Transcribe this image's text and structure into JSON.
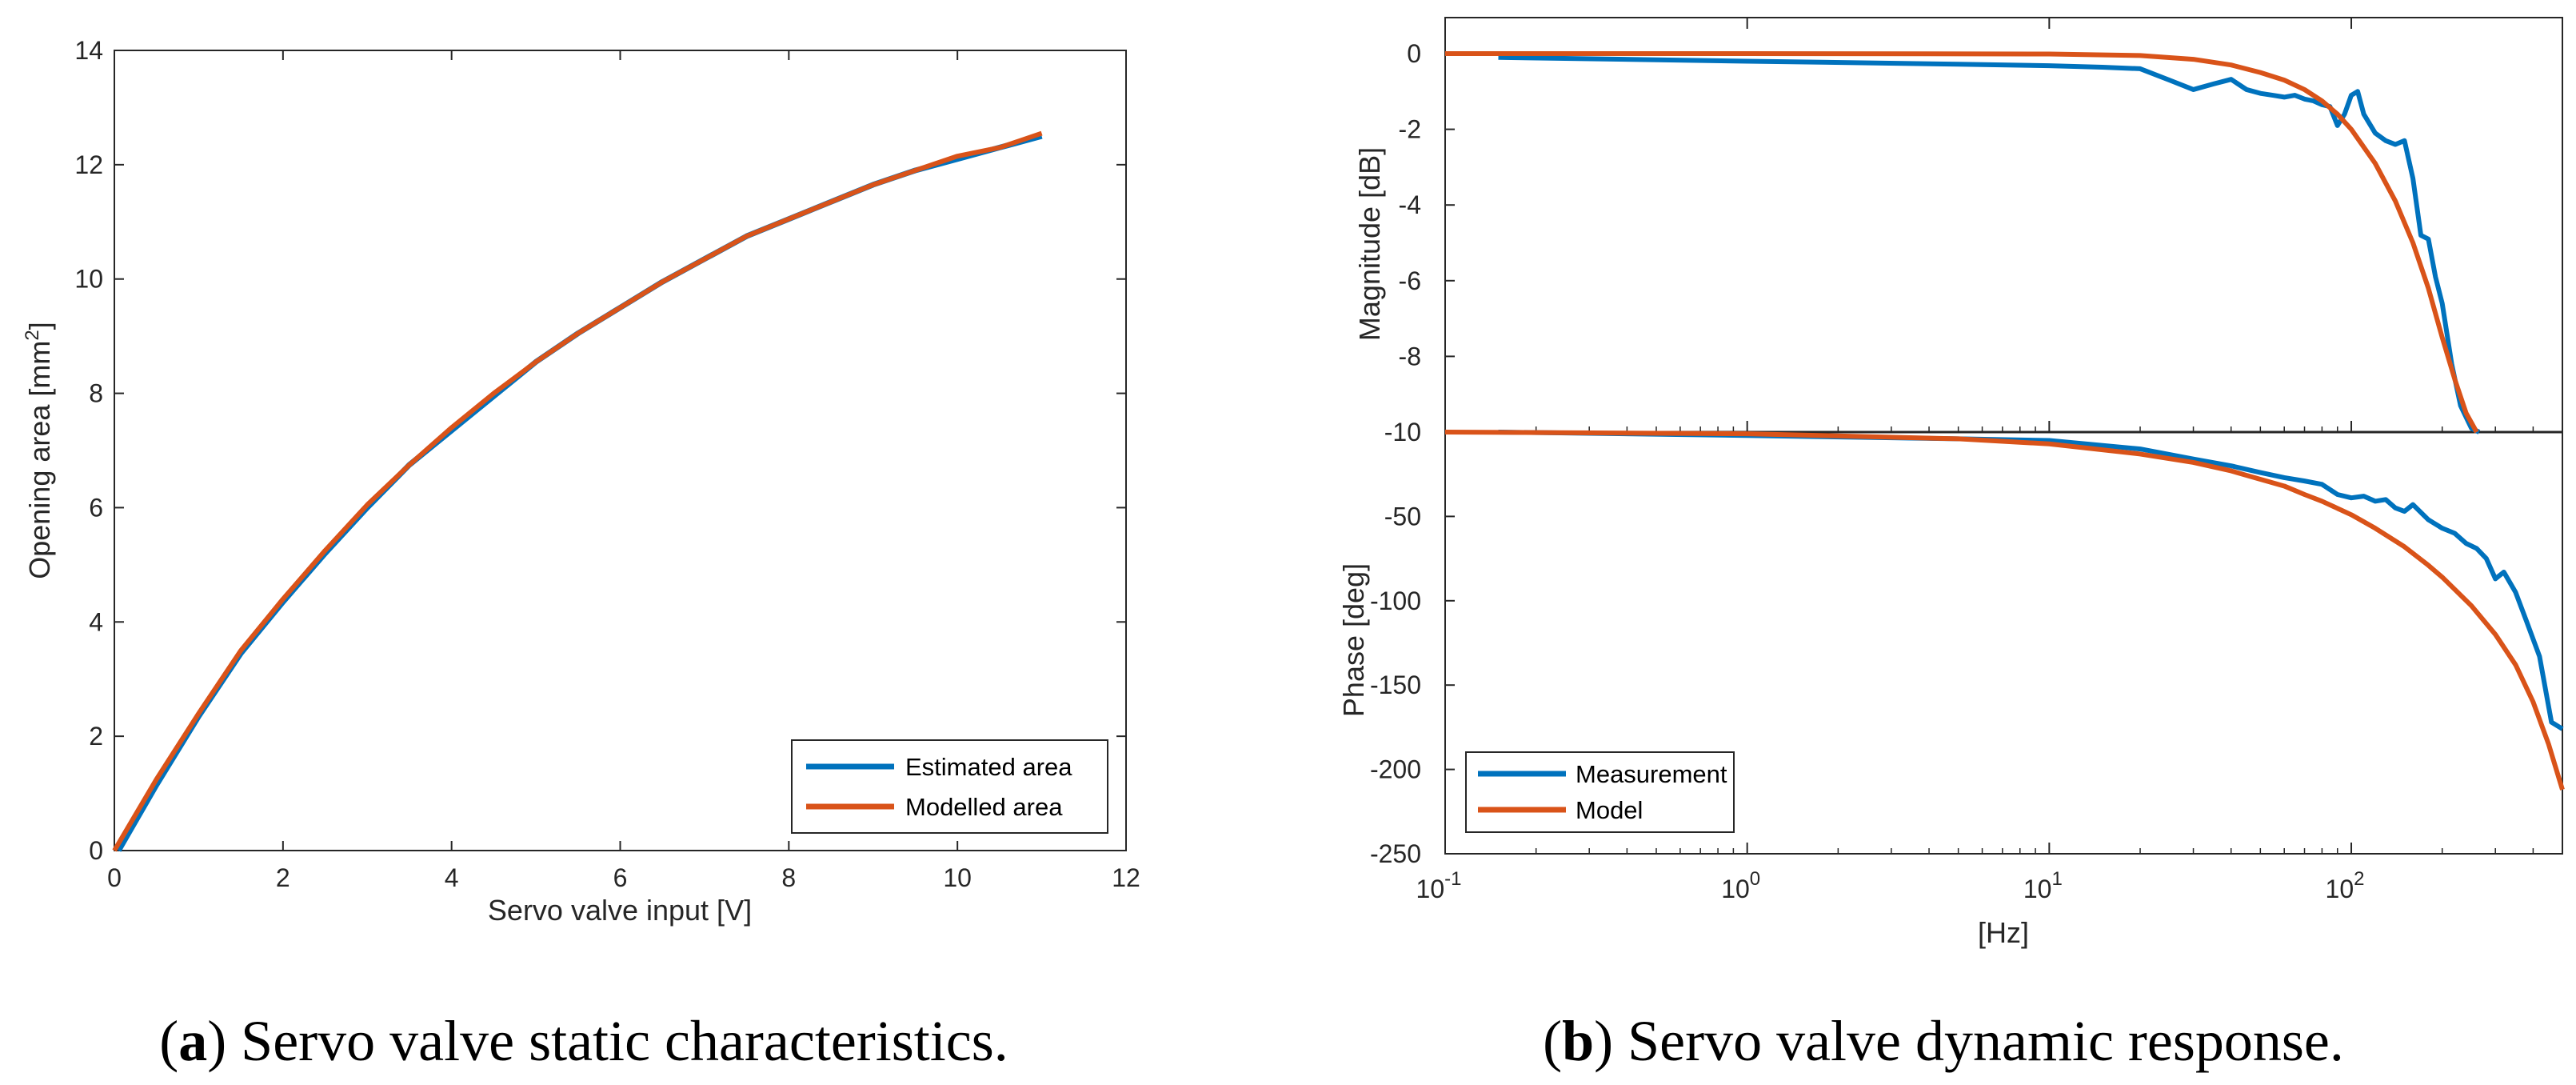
{
  "colors": {
    "blue": "#0072BD",
    "orange": "#D95319",
    "axis": "#262626"
  },
  "chart_data": [
    {
      "type": "line",
      "panel": "a",
      "xlabel": "Servo valve input [V]",
      "ylabel": "Opening area [mm",
      "ylabel_sup": "2",
      "ylabel_end": "]",
      "xlim": [
        0,
        12
      ],
      "ylim": [
        0,
        14
      ],
      "xticks": [
        "0",
        "2",
        "4",
        "6",
        "8",
        "10",
        "12"
      ],
      "yticks": [
        "0",
        "2",
        "4",
        "6",
        "8",
        "10",
        "12",
        "14"
      ],
      "legend": [
        "Estimated area",
        "Modelled area"
      ],
      "legend_position": "bottom-right",
      "series": [
        {
          "name": "Estimated area",
          "color": "#0072BD",
          "x": [
            0.05,
            0.5,
            1,
            1.5,
            2,
            2.5,
            3,
            3.5,
            4,
            4.5,
            5,
            5.5,
            6,
            6.5,
            7,
            7.5,
            8,
            8.5,
            9,
            9.5,
            10,
            10.5,
            11
          ],
          "y": [
            0,
            1.15,
            2.35,
            3.45,
            4.35,
            5.2,
            6.0,
            6.75,
            7.35,
            7.95,
            8.55,
            9.05,
            9.5,
            9.95,
            10.35,
            10.75,
            11.05,
            11.35,
            11.65,
            11.9,
            12.1,
            12.3,
            12.5
          ]
        },
        {
          "name": "Modelled area",
          "color": "#D95319",
          "x": [
            0,
            0.5,
            1,
            1.5,
            2,
            2.5,
            3,
            3.5,
            4,
            4.5,
            5,
            5.5,
            6,
            6.5,
            7,
            7.5,
            8,
            8.5,
            9,
            9.5,
            10,
            10.5,
            11
          ],
          "y": [
            0,
            1.25,
            2.4,
            3.5,
            4.4,
            5.25,
            6.05,
            6.75,
            7.4,
            8.0,
            8.55,
            9.05,
            9.5,
            9.95,
            10.35,
            10.75,
            11.05,
            11.35,
            11.65,
            11.9,
            12.15,
            12.3,
            12.55
          ]
        }
      ]
    },
    {
      "type": "line",
      "panel": "b-magnitude",
      "ylabel": "Magnitude [dB]",
      "xscale": "log",
      "xlim": [
        0.1,
        500
      ],
      "ylim": [
        -10,
        1
      ],
      "yticks": [
        "0",
        "-2",
        "-4",
        "-6",
        "-8",
        "-10"
      ],
      "series": [
        {
          "name": "Measurement",
          "color": "#0072BD",
          "x": [
            0.15,
            1,
            5,
            10,
            15,
            20,
            25,
            30,
            35,
            40,
            45,
            50,
            55,
            60,
            65,
            70,
            75,
            80,
            85,
            90,
            95,
            100,
            105,
            110,
            120,
            130,
            140,
            150,
            160,
            170,
            180,
            190,
            200,
            215,
            230,
            250,
            265
          ],
          "y": [
            -0.1,
            -0.2,
            -0.28,
            -0.32,
            -0.36,
            -0.4,
            -0.7,
            -0.95,
            -0.8,
            -0.68,
            -0.95,
            -1.05,
            -1.1,
            -1.15,
            -1.1,
            -1.2,
            -1.25,
            -1.35,
            -1.4,
            -1.9,
            -1.6,
            -1.1,
            -1.0,
            -1.6,
            -2.1,
            -2.3,
            -2.4,
            -2.3,
            -3.3,
            -4.8,
            -4.9,
            -5.9,
            -6.6,
            -8.2,
            -9.3,
            -9.9,
            -10
          ]
        },
        {
          "name": "Model",
          "color": "#D95319",
          "x": [
            0.1,
            1,
            10,
            20,
            30,
            40,
            50,
            60,
            70,
            80,
            90,
            100,
            120,
            140,
            160,
            180,
            200,
            220,
            240,
            260
          ],
          "y": [
            0,
            0,
            -0.01,
            -0.05,
            -0.15,
            -0.3,
            -0.5,
            -0.7,
            -0.95,
            -1.25,
            -1.6,
            -2.0,
            -2.9,
            -3.9,
            -5.0,
            -6.2,
            -7.5,
            -8.6,
            -9.5,
            -10
          ]
        }
      ]
    },
    {
      "type": "line",
      "panel": "b-phase",
      "xlabel": "[Hz]",
      "ylabel": "Phase [deg]",
      "xscale": "log",
      "xlim": [
        0.1,
        500
      ],
      "ylim": [
        -250,
        0
      ],
      "xticks": [
        {
          "base": "10",
          "exp": "-1"
        },
        {
          "base": "10",
          "exp": "0"
        },
        {
          "base": "10",
          "exp": "1"
        },
        {
          "base": "10",
          "exp": "2"
        }
      ],
      "yticks": [
        "-50",
        "-100",
        "-150",
        "-200",
        "-250"
      ],
      "legend": [
        "Measurement",
        "Model"
      ],
      "legend_position": "bottom-left",
      "series": [
        {
          "name": "Measurement",
          "color": "#0072BD",
          "x": [
            0.15,
            1,
            5,
            10,
            20,
            30,
            40,
            50,
            60,
            70,
            80,
            90,
            100,
            110,
            120,
            130,
            140,
            150,
            160,
            180,
            200,
            220,
            240,
            260,
            280,
            300,
            320,
            350,
            380,
            420,
            460,
            500
          ],
          "y": [
            0,
            -2,
            -4,
            -5,
            -10,
            -16,
            -20,
            -24,
            -27,
            -29,
            -31,
            -37,
            -39,
            -38,
            -41,
            -40,
            -45,
            -47,
            -43,
            -52,
            -57,
            -60,
            -66,
            -69,
            -75,
            -87,
            -83,
            -95,
            -112,
            -133,
            -172,
            -176
          ]
        },
        {
          "name": "Model",
          "color": "#D95319",
          "x": [
            0.1,
            1,
            5,
            10,
            20,
            30,
            40,
            50,
            60,
            70,
            80,
            100,
            120,
            150,
            180,
            200,
            250,
            300,
            350,
            400,
            450,
            500
          ],
          "y": [
            0,
            -1,
            -4,
            -7,
            -13,
            -18,
            -23,
            -28,
            -32,
            -37,
            -41,
            -49,
            -57,
            -68,
            -79,
            -86,
            -103,
            -120,
            -138,
            -160,
            -185,
            -212
          ]
        }
      ]
    }
  ],
  "captions": {
    "a_prefix": "(",
    "a_letter": "a",
    "a_text": ") Servo valve static characteristics.",
    "b_prefix": "(",
    "b_letter": "b",
    "b_text": ") Servo valve dynamic response."
  }
}
